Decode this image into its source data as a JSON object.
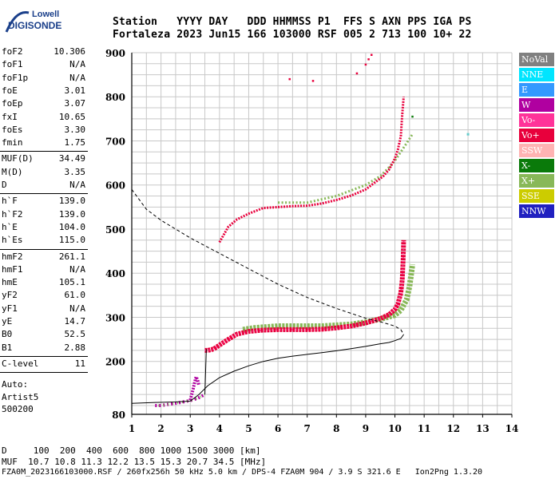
{
  "logo": {
    "line1": "Lowell",
    "line2": "DIGISONDE"
  },
  "header": {
    "labels": "Station   YYYY DAY   DDD HHMMSS P1  FFS S AXN PPS IGA PS",
    "values": "Fortaleza 2023 Jun15 166 103000 RSF 005 2 713 100 10+ 22"
  },
  "params": [
    {
      "group": 1,
      "label": "foF2",
      "value": "10.306"
    },
    {
      "group": 1,
      "label": "foF1",
      "value": "N/A"
    },
    {
      "group": 1,
      "label": "foF1p",
      "value": "N/A"
    },
    {
      "group": 1,
      "label": "foE",
      "value": "3.01"
    },
    {
      "group": 1,
      "label": "foEp",
      "value": "3.07"
    },
    {
      "group": 1,
      "label": "fxI",
      "value": "10.65"
    },
    {
      "group": 1,
      "label": "foEs",
      "value": "3.30"
    },
    {
      "group": 1,
      "label": "fmin",
      "value": "1.75"
    },
    {
      "group": 2,
      "label": "MUF(D)",
      "value": "34.49"
    },
    {
      "group": 2,
      "label": "M(D)",
      "value": "3.35"
    },
    {
      "group": 2,
      "label": "D",
      "value": "N/A"
    },
    {
      "group": 3,
      "label": "h`F",
      "value": "139.0"
    },
    {
      "group": 3,
      "label": "h`F2",
      "value": "139.0"
    },
    {
      "group": 3,
      "label": "h`E",
      "value": "104.0"
    },
    {
      "group": 3,
      "label": "h`Es",
      "value": "115.0"
    },
    {
      "group": 4,
      "label": "hmF2",
      "value": "261.1"
    },
    {
      "group": 4,
      "label": "hmF1",
      "value": "N/A"
    },
    {
      "group": 4,
      "label": "hmE",
      "value": "105.1"
    },
    {
      "group": 4,
      "label": "yF2",
      "value": "61.0"
    },
    {
      "group": 4,
      "label": "yF1",
      "value": "N/A"
    },
    {
      "group": 4,
      "label": "yE",
      "value": "14.7"
    },
    {
      "group": 4,
      "label": "B0",
      "value": "52.5"
    },
    {
      "group": 4,
      "label": "B1",
      "value": "2.88"
    },
    {
      "group": 5,
      "label": "C-level",
      "value": "11"
    }
  ],
  "autoscaler": {
    "line1": "Auto:",
    "line2": "Artist5",
    "line3": "500200"
  },
  "legend": [
    {
      "label": "NoVal",
      "bg": "#808080",
      "fg": "#ffffff"
    },
    {
      "label": "NNE",
      "bg": "#00e5ff",
      "fg": "#ffffff"
    },
    {
      "label": "E",
      "bg": "#3399ff",
      "fg": "#ffffff"
    },
    {
      "label": "W",
      "bg": "#b000a0",
      "fg": "#ffffff"
    },
    {
      "label": "Vo-",
      "bg": "#ff3399",
      "fg": "#ffffff"
    },
    {
      "label": "Vo+",
      "bg": "#e8003c",
      "fg": "#ffffff"
    },
    {
      "label": "SSW",
      "bg": "#ffb3b3",
      "fg": "#ffffff"
    },
    {
      "label": "X-",
      "bg": "#0a7a0a",
      "fg": "#ffffff"
    },
    {
      "label": "X+",
      "bg": "#88b858",
      "fg": "#ffffff"
    },
    {
      "label": "SSE",
      "bg": "#cccc00",
      "fg": "#ffffff"
    },
    {
      "label": "NNW",
      "bg": "#2020c0",
      "fg": "#ffffff"
    }
  ],
  "footer": {
    "line1": "D     100  200  400  600  800 1000 1500 3000 [km]",
    "line2": "MUF  10.7 10.8 11.3 12.2 13.5 15.3 20.7 34.5 [MHz]",
    "line3": "FZA0M_2023166103000.RSF / 260fx256h 50 kHz 5.0 km / DPS-4 FZA0M 904 / 3.9 S 321.6 E   Ion2Png 1.3.20"
  },
  "chart_data": {
    "type": "scatter",
    "xlabel": "",
    "ylabel": "",
    "xlim": [
      1,
      14
    ],
    "ylim": [
      80,
      900
    ],
    "x_ticks": [
      1,
      2,
      3,
      4,
      5,
      6,
      7,
      8,
      9,
      10,
      11,
      12,
      13,
      14
    ],
    "y_ticks": [
      80,
      200,
      300,
      400,
      500,
      600,
      700,
      800,
      900
    ],
    "grid": true,
    "legend_position": "right",
    "profile": {
      "x": [
        1.0,
        1.8,
        2.5,
        3.0,
        3.3,
        3.6,
        4.0,
        4.5,
        5.0,
        5.5,
        6.0,
        6.5,
        7.0,
        7.5,
        8.0,
        8.5,
        9.0,
        9.5,
        9.8,
        10.0,
        10.2,
        10.3
      ],
      "y": [
        105,
        107,
        108,
        110,
        125,
        145,
        163,
        178,
        190,
        200,
        207,
        212,
        216,
        220,
        224,
        229,
        234,
        240,
        243,
        247,
        252,
        261
      ]
    },
    "extrapolated_profile": {
      "x": [
        1.0,
        1.5,
        2.0,
        3.0,
        4.0,
        5.0,
        6.0,
        7.0,
        8.0,
        9.0,
        9.6,
        10.0,
        10.2,
        10.3
      ],
      "y": [
        590,
        545,
        520,
        480,
        445,
        410,
        375,
        345,
        320,
        298,
        288,
        280,
        272,
        261
      ]
    },
    "trace_o_F": {
      "x": [
        3.5,
        3.6,
        3.8,
        4.0,
        4.3,
        4.6,
        5.0,
        5.5,
        6.0,
        6.5,
        7.0,
        7.5,
        8.0,
        8.5,
        9.0,
        9.5,
        9.8,
        10.0,
        10.1,
        10.2,
        10.25,
        10.28,
        10.3
      ],
      "y": [
        225,
        225,
        228,
        237,
        250,
        262,
        268,
        271,
        272,
        272,
        272,
        273,
        276,
        280,
        287,
        297,
        306,
        318,
        330,
        355,
        385,
        430,
        475
      ]
    },
    "trace_x_F": {
      "x": [
        4.8,
        5.2,
        5.6,
        6.0,
        6.5,
        7.0,
        7.5,
        8.0,
        8.5,
        9.0,
        9.5,
        10.0,
        10.2,
        10.4,
        10.5,
        10.55,
        10.6
      ],
      "y": [
        272,
        276,
        278,
        280,
        280,
        280,
        280,
        282,
        284,
        289,
        296,
        305,
        316,
        340,
        370,
        395,
        420
      ]
    },
    "trace_o_F_multiple": {
      "x": [
        4.0,
        4.3,
        4.6,
        5.0,
        5.5,
        6.0,
        6.5,
        7.0,
        7.5,
        8.0,
        8.5,
        9.0,
        9.3,
        9.6,
        9.8,
        10.0,
        10.1,
        10.2,
        10.25,
        10.3
      ],
      "y": [
        470,
        505,
        522,
        535,
        548,
        550,
        552,
        553,
        558,
        566,
        576,
        590,
        605,
        620,
        635,
        660,
        680,
        710,
        760,
        800
      ]
    },
    "trace_x_F_multiple": {
      "x": [
        6.0,
        7.0,
        8.0,
        9.0,
        9.5,
        9.8,
        10.0,
        10.2,
        10.4,
        10.5,
        10.6
      ],
      "y": [
        560,
        560,
        575,
        600,
        620,
        640,
        655,
        675,
        695,
        705,
        715
      ]
    },
    "trace_E_low": {
      "x": [
        1.8,
        2.0,
        2.3,
        2.6,
        2.9,
        3.1,
        3.3,
        3.5
      ],
      "y": [
        100,
        100,
        103,
        106,
        110,
        113,
        118,
        125
      ]
    },
    "trace_Es": {
      "x": [
        3.0,
        3.05,
        3.1,
        3.15,
        3.2,
        3.25,
        3.3
      ],
      "y": [
        112,
        125,
        138,
        152,
        165,
        158,
        145
      ]
    },
    "scattered_top": {
      "x": [
        6.4,
        7.2,
        8.7,
        9.0,
        9.1,
        9.2
      ],
      "y": [
        840,
        836,
        853,
        873,
        885,
        895
      ]
    },
    "isolated_points": {
      "x": [
        10.6,
        12.5
      ],
      "y": [
        755,
        715
      ]
    }
  }
}
